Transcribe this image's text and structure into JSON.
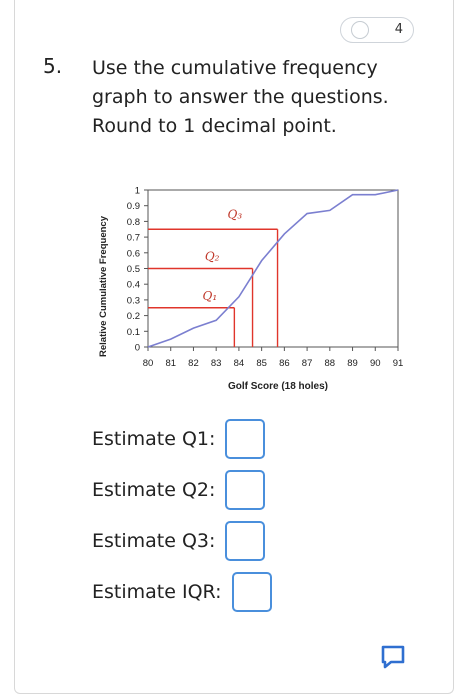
{
  "header": {
    "points": "4"
  },
  "question": {
    "number": "5.",
    "lines": [
      "Use the cumulative frequency",
      "graph to answer the questions.",
      "Round to 1 decimal point."
    ]
  },
  "chart_data": {
    "type": "line",
    "xlabel": "Golf Score (18 holes)",
    "ylabel": "Relative Cumulative Frequency",
    "x_ticks": [
      "80",
      "81",
      "82",
      "83",
      "84",
      "85",
      "86",
      "87",
      "88",
      "89",
      "90",
      "91"
    ],
    "y_ticks": [
      "0",
      "0.1",
      "0.2",
      "0.3",
      "0.4",
      "0.5",
      "0.6",
      "0.7",
      "0.8",
      "0.9",
      "1"
    ],
    "xlim": [
      80,
      91
    ],
    "ylim": [
      0,
      1
    ],
    "series": [
      {
        "color": "#7b7fd0",
        "x": [
          80,
          81,
          82,
          83,
          84,
          85,
          86,
          87,
          88,
          89,
          90,
          91
        ],
        "y": [
          0,
          0.05,
          0.12,
          0.17,
          0.32,
          0.55,
          0.72,
          0.85,
          0.87,
          0.97,
          0.97,
          1.0
        ]
      }
    ],
    "guides": [
      {
        "label": "Q1",
        "x": 83.8,
        "y": 0.25
      },
      {
        "label": "Q2",
        "x": 84.6,
        "y": 0.5
      },
      {
        "label": "Q3",
        "x": 85.7,
        "y": 0.75
      }
    ],
    "guide_color": "#e0352b",
    "grid": false
  },
  "handwritten": {
    "q1": "Q₁",
    "q2": "Q₂",
    "q3": "Q₃"
  },
  "estimates": [
    {
      "label": "Estimate Q1:"
    },
    {
      "label": "Estimate Q2:"
    },
    {
      "label": "Estimate Q3:"
    },
    {
      "label": "Estimate IQR:"
    }
  ],
  "accent_color": "#3478d6"
}
